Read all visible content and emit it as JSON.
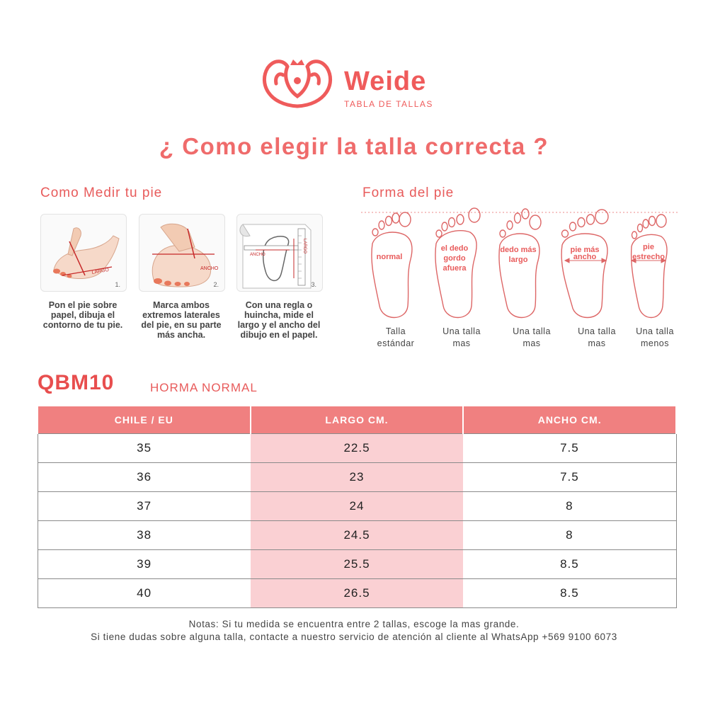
{
  "brand": {
    "name": "Weide",
    "subtitle": "TABLA DE TALLAS",
    "accent_color": "#ef5b5b"
  },
  "title": "¿ Como elegir la talla correcta ?",
  "measure": {
    "heading": "Como Medir tu pie",
    "steps": [
      {
        "number": "1.",
        "image": "foot-length-drawing",
        "label": "LARGO",
        "caption": "Pon el pie sobre papel, dibuja el contorno de tu pie."
      },
      {
        "number": "2.",
        "image": "foot-width-drawing",
        "label": "ANCHO",
        "caption": "Marca ambos extremos laterales del pie, en su parte más ancha."
      },
      {
        "number": "3.",
        "image": "ruler-measure-drawing",
        "label_length": "LARGO",
        "label_width": "ANCHO",
        "caption": "Con una regla o huincha, mide el largo y el ancho del dibujo en el papel."
      }
    ]
  },
  "shapes": {
    "heading": "Forma del pie",
    "items": [
      {
        "label": [
          "normal"
        ],
        "caption": [
          "Talla",
          "estándar"
        ]
      },
      {
        "label": [
          "el dedo",
          "gordo",
          "afuera"
        ],
        "caption": [
          "Una talla",
          "mas"
        ]
      },
      {
        "label": [
          "dedo más",
          "largo"
        ],
        "caption": [
          "Una talla",
          "mas"
        ]
      },
      {
        "label": [
          "pie más",
          "ancho"
        ],
        "caption": [
          "Una talla",
          "mas"
        ]
      },
      {
        "label": [
          "pie",
          "estrecho"
        ],
        "caption": [
          "Una talla",
          "menos"
        ]
      }
    ]
  },
  "model": {
    "code": "QBM10",
    "fit": "HORMA NORMAL"
  },
  "table": {
    "headers": [
      "CHILE / EU",
      "LARGO CM.",
      "ANCHO CM."
    ],
    "rows": [
      [
        "35",
        "22.5",
        "7.5"
      ],
      [
        "36",
        "23",
        "7.5"
      ],
      [
        "37",
        "24",
        "8"
      ],
      [
        "38",
        "24.5",
        "8"
      ],
      [
        "39",
        "25.5",
        "8.5"
      ],
      [
        "40",
        "26.5",
        "8.5"
      ]
    ],
    "header_color": "#f08080",
    "highlight_color": "#fad0d3"
  },
  "notes": [
    "Notas: Si tu medida se encuentra entre 2 tallas, escoge la mas grande.",
    "Si tiene dudas sobre alguna talla, contacte a nuestro servicio de atención al cliente al WhatsApp +569 9100 6073"
  ]
}
